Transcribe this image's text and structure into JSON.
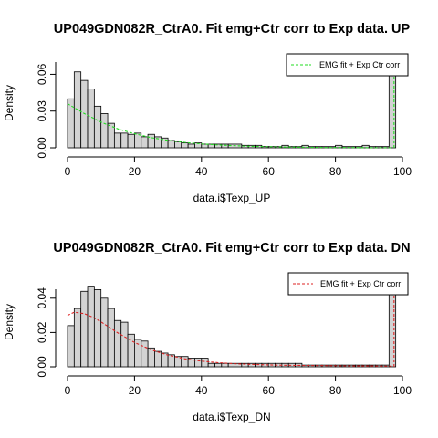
{
  "chart_data": [
    {
      "type": "bar",
      "title": "UP049GDN082R_CtrA0. Fit emg+Ctr corr to Exp data. UP",
      "xlabel": "data.i$Texp_UP",
      "ylabel": "Density",
      "xlim": [
        0,
        100
      ],
      "ylim": [
        0,
        0.07
      ],
      "xticks": [
        0,
        20,
        40,
        60,
        80,
        100
      ],
      "yticks": [
        0.0,
        0.03,
        0.06
      ],
      "ytick_labels": [
        "0.00",
        "0.03",
        "0.06"
      ],
      "bin_width": 2,
      "bin_start": 0,
      "values": [
        0.04,
        0.062,
        0.055,
        0.048,
        0.034,
        0.028,
        0.02,
        0.012,
        0.012,
        0.011,
        0.012,
        0.009,
        0.011,
        0.009,
        0.008,
        0.006,
        0.005,
        0.004,
        0.003,
        0.004,
        0.003,
        0.003,
        0.003,
        0.003,
        0.003,
        0.003,
        0.002,
        0.002,
        0.002,
        0.001,
        0.001,
        0.001,
        0.002,
        0.001,
        0.001,
        0.002,
        0.001,
        0.001,
        0.001,
        0.001,
        0.002,
        0.001,
        0.001,
        0.001,
        0.002,
        0.001,
        0.001,
        0.001,
        0.07
      ],
      "bar_fill": "#d3d3d3",
      "fit": {
        "name": "EMG fit + Exp Ctr corr",
        "color": "#22dd22",
        "x": [
          0,
          5,
          10,
          15,
          20,
          25,
          30,
          35,
          40,
          45,
          50,
          55,
          60,
          65,
          70,
          75,
          80,
          85,
          90,
          95,
          97
        ],
        "y": [
          0.036,
          0.028,
          0.021,
          0.0155,
          0.0115,
          0.0083,
          0.0061,
          0.0044,
          0.0032,
          0.0023,
          0.0017,
          0.0012,
          0.0009,
          0.0006,
          0.0005,
          0.0003,
          0.0002,
          0.0002,
          0.0001,
          0.0001,
          0.0001
        ],
        "spike_x": 97.5,
        "spike_y": 0.07
      },
      "legend_position": "top-right"
    },
    {
      "type": "bar",
      "title": "UP049GDN082R_CtrA0. Fit emg+Ctr corr to Exp data. DN",
      "xlabel": "data.i$Texp_DN",
      "ylabel": "Density",
      "xlim": [
        0,
        100
      ],
      "ylim": [
        0,
        0.05
      ],
      "xticks": [
        0,
        20,
        40,
        60,
        80,
        100
      ],
      "yticks": [
        0.0,
        0.02,
        0.04
      ],
      "ytick_labels": [
        "0.00",
        "0.02",
        "0.04"
      ],
      "bin_width": 2,
      "bin_start": 0,
      "values": [
        0.024,
        0.034,
        0.044,
        0.047,
        0.045,
        0.04,
        0.034,
        0.027,
        0.026,
        0.019,
        0.016,
        0.015,
        0.011,
        0.009,
        0.008,
        0.007,
        0.006,
        0.006,
        0.005,
        0.005,
        0.005,
        0.002,
        0.002,
        0.002,
        0.002,
        0.002,
        0.002,
        0.002,
        0.002,
        0.002,
        0.002,
        0.002,
        0.002,
        0.002,
        0.002,
        0.001,
        0.001,
        0.001,
        0.001,
        0.001,
        0.001,
        0.001,
        0.001,
        0.001,
        0.001,
        0.001,
        0.001,
        0.001,
        0.05
      ],
      "bar_fill": "#d3d3d3",
      "fit": {
        "name": "EMG fit + Exp Ctr corr",
        "color": "#dd2222",
        "x": [
          0,
          2,
          5,
          8,
          10,
          15,
          20,
          25,
          30,
          35,
          40,
          45,
          50,
          55,
          60,
          65,
          70,
          75,
          80,
          85,
          90,
          95,
          97
        ],
        "y": [
          0.03,
          0.0318,
          0.031,
          0.0285,
          0.0262,
          0.0198,
          0.0142,
          0.0099,
          0.0068,
          0.0047,
          0.0033,
          0.0024,
          0.0018,
          0.0014,
          0.0011,
          0.0009,
          0.0008,
          0.0007,
          0.0006,
          0.0005,
          0.0005,
          0.0004,
          0.0004
        ],
        "spike_x": 97.5,
        "spike_y": 0.05
      },
      "legend_position": "top-right"
    }
  ]
}
